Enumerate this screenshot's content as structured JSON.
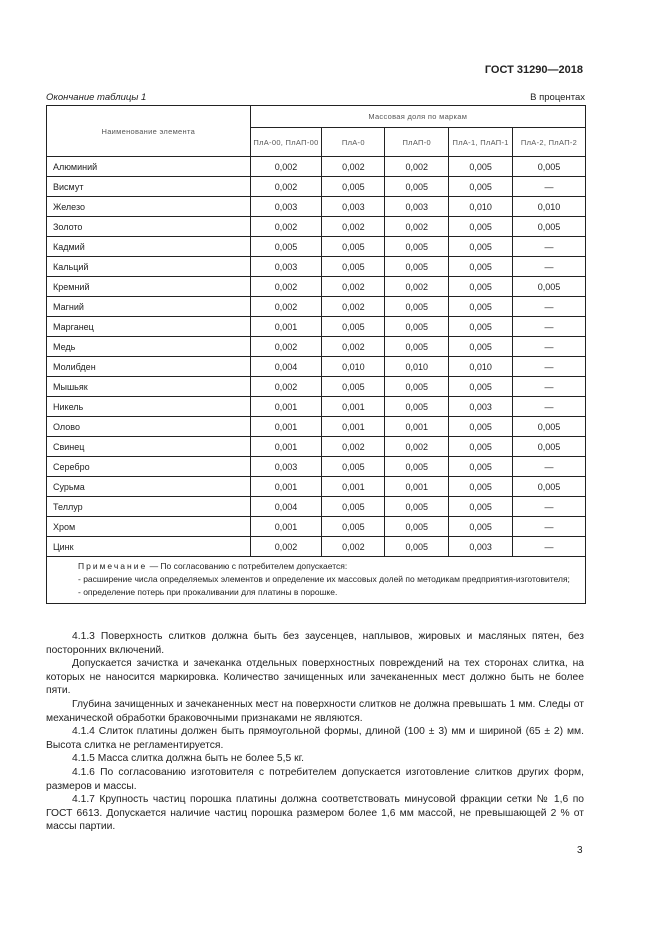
{
  "header": {
    "doc_id": "ГОСТ 31290—2018"
  },
  "table": {
    "caption": "Окончание таблицы 1",
    "unit": "В процентах",
    "col_name": "Наименование элемента",
    "group": "Массовая доля по маркам",
    "grades": [
      "ПлА-00, ПлАП-00",
      "ПлА-0",
      "ПлАП-0",
      "ПлА-1, ПлАП-1",
      "ПлА-2, ПлАП-2"
    ],
    "rows": [
      [
        "Алюминий",
        "0,002",
        "0,002",
        "0,002",
        "0,005",
        "0,005"
      ],
      [
        "Висмут",
        "0,002",
        "0,005",
        "0,005",
        "0,005",
        "—"
      ],
      [
        "Железо",
        "0,003",
        "0,003",
        "0,003",
        "0,010",
        "0,010"
      ],
      [
        "Золото",
        "0,002",
        "0,002",
        "0,002",
        "0,005",
        "0,005"
      ],
      [
        "Кадмий",
        "0,005",
        "0,005",
        "0,005",
        "0,005",
        "—"
      ],
      [
        "Кальций",
        "0,003",
        "0,005",
        "0,005",
        "0,005",
        "—"
      ],
      [
        "Кремний",
        "0,002",
        "0,002",
        "0,002",
        "0,005",
        "0,005"
      ],
      [
        "Магний",
        "0,002",
        "0,002",
        "0,005",
        "0,005",
        "—"
      ],
      [
        "Марганец",
        "0,001",
        "0,005",
        "0,005",
        "0,005",
        "—"
      ],
      [
        "Медь",
        "0,002",
        "0,002",
        "0,005",
        "0,005",
        "—"
      ],
      [
        "Молибден",
        "0,004",
        "0,010",
        "0,010",
        "0,010",
        "—"
      ],
      [
        "Мышьяк",
        "0,002",
        "0,005",
        "0,005",
        "0,005",
        "—"
      ],
      [
        "Никель",
        "0,001",
        "0,001",
        "0,005",
        "0,003",
        "—"
      ],
      [
        "Олово",
        "0,001",
        "0,001",
        "0,001",
        "0,005",
        "0,005"
      ],
      [
        "Свинец",
        "0,001",
        "0,002",
        "0,002",
        "0,005",
        "0,005"
      ],
      [
        "Серебро",
        "0,003",
        "0,005",
        "0,005",
        "0,005",
        "—"
      ],
      [
        "Сурьма",
        "0,001",
        "0,001",
        "0,001",
        "0,005",
        "0,005"
      ],
      [
        "Теллур",
        "0,004",
        "0,005",
        "0,005",
        "0,005",
        "—"
      ],
      [
        "Хром",
        "0,001",
        "0,005",
        "0,005",
        "0,005",
        "—"
      ],
      [
        "Цинк",
        "0,002",
        "0,002",
        "0,005",
        "0,003",
        "—"
      ]
    ],
    "note": {
      "label": "Примечание",
      "intro": " — По согласованию с потребителем допускается:",
      "items": [
        "- расширение числа определяемых элементов и определение их массовых долей по методикам предприятия-изготовителя;",
        "- определение потерь при прокаливании для платины в порошке."
      ]
    }
  },
  "paragraphs": [
    "4.1.3 Поверхность слитков должна быть без заусенцев, наплывов, жировых и масляных пятен, без посторонних включений.",
    "Допускается зачистка и зачеканка отдельных поверхностных повреждений на тех сторонах слитка, на которых не наносится маркировка. Количество зачищенных или зачеканенных мест должно быть не более пяти.",
    "Глубина зачищенных и зачеканенных мест на поверхности слитков не должна превышать 1 мм. Следы от механической обработки браковочными признаками не являются.",
    "4.1.4 Слиток платины должен быть прямоугольной формы, длиной (100 ± 3) мм и шириной (65 ± 2) мм. Высота слитка не регламентируется.",
    "4.1.5 Масса слитка должна быть не более 5,5 кг.",
    "4.1.6 По согласованию изготовителя с потребителем допускается изготовление слитков других форм, размеров и массы.",
    "4.1.7 Крупность частиц порошка платины должна соответствовать минусовой фракции сетки № 1,6 по ГОСТ 6613. Допускается наличие частиц порошка размером более 1,6 мм массой, не превышающей 2 % от массы партии."
  ],
  "page_number": "3"
}
